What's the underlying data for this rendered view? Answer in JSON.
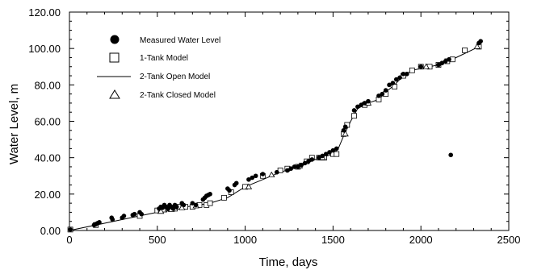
{
  "chart_data": {
    "type": "scatter",
    "xlabel": "Time, days",
    "ylabel": "Water Level, m",
    "xlim": [
      0,
      2500
    ],
    "ylim": [
      0,
      120
    ],
    "xticks": [
      "0",
      "500",
      "1000",
      "1500",
      "2000",
      "2500"
    ],
    "yticks": [
      "0.00",
      "20.00",
      "40.00",
      "60.00",
      "80.00",
      "100.00",
      "120.00"
    ],
    "grid": false,
    "legend_placement": "top-left",
    "series": [
      {
        "name": "Measured Water Level",
        "marker": "filled-circle",
        "points": [
          [
            5,
            0.5
          ],
          [
            140,
            3
          ],
          [
            150,
            3.5
          ],
          [
            160,
            4
          ],
          [
            170,
            4.5
          ],
          [
            240,
            7
          ],
          [
            245,
            6
          ],
          [
            300,
            7
          ],
          [
            310,
            8
          ],
          [
            360,
            8.5
          ],
          [
            370,
            9
          ],
          [
            400,
            10
          ],
          [
            410,
            9
          ],
          [
            510,
            12
          ],
          [
            520,
            13
          ],
          [
            530,
            12.5
          ],
          [
            540,
            14
          ],
          [
            550,
            13
          ],
          [
            560,
            12
          ],
          [
            570,
            14
          ],
          [
            580,
            13
          ],
          [
            590,
            12
          ],
          [
            600,
            14
          ],
          [
            610,
            13
          ],
          [
            640,
            15
          ],
          [
            650,
            14
          ],
          [
            700,
            15
          ],
          [
            720,
            14
          ],
          [
            760,
            17
          ],
          [
            770,
            18
          ],
          [
            780,
            19
          ],
          [
            790,
            19.5
          ],
          [
            800,
            20
          ],
          [
            900,
            23
          ],
          [
            910,
            22
          ],
          [
            940,
            25
          ],
          [
            950,
            26
          ],
          [
            1020,
            28
          ],
          [
            1040,
            29
          ],
          [
            1060,
            30
          ],
          [
            1100,
            31
          ],
          [
            1180,
            32
          ],
          [
            1240,
            33
          ],
          [
            1260,
            34
          ],
          [
            1280,
            35
          ],
          [
            1300,
            35
          ],
          [
            1320,
            36
          ],
          [
            1340,
            37
          ],
          [
            1360,
            38
          ],
          [
            1380,
            39
          ],
          [
            1420,
            40
          ],
          [
            1440,
            41
          ],
          [
            1460,
            42
          ],
          [
            1480,
            43
          ],
          [
            1500,
            44
          ],
          [
            1520,
            45
          ],
          [
            1560,
            55
          ],
          [
            1570,
            57
          ],
          [
            1620,
            66
          ],
          [
            1640,
            68
          ],
          [
            1660,
            69
          ],
          [
            1680,
            70
          ],
          [
            1700,
            71
          ],
          [
            1760,
            74
          ],
          [
            1780,
            75
          ],
          [
            1800,
            77
          ],
          [
            1820,
            80
          ],
          [
            1840,
            81
          ],
          [
            1860,
            83
          ],
          [
            1880,
            84
          ],
          [
            1900,
            86
          ],
          [
            1920,
            86
          ],
          [
            2000,
            90
          ],
          [
            2100,
            91
          ],
          [
            2120,
            92
          ],
          [
            2140,
            93
          ],
          [
            2160,
            94
          ],
          [
            2170,
            41.5
          ],
          [
            2330,
            103
          ],
          [
            2340,
            104
          ]
        ]
      },
      {
        "name": "1-Tank Model",
        "marker": "open-square",
        "points": [
          [
            5,
            0.5
          ],
          [
            150,
            3
          ],
          [
            400,
            8
          ],
          [
            500,
            11
          ],
          [
            520,
            11
          ],
          [
            540,
            11.5
          ],
          [
            560,
            12
          ],
          [
            600,
            12
          ],
          [
            620,
            13
          ],
          [
            660,
            13
          ],
          [
            700,
            13
          ],
          [
            740,
            14
          ],
          [
            780,
            14
          ],
          [
            800,
            15
          ],
          [
            880,
            18
          ],
          [
            920,
            21
          ],
          [
            1000,
            24
          ],
          [
            1100,
            30
          ],
          [
            1200,
            33
          ],
          [
            1240,
            34
          ],
          [
            1300,
            35
          ],
          [
            1350,
            38
          ],
          [
            1380,
            40
          ],
          [
            1420,
            40
          ],
          [
            1450,
            40
          ],
          [
            1500,
            42
          ],
          [
            1520,
            42
          ],
          [
            1560,
            53
          ],
          [
            1580,
            58
          ],
          [
            1620,
            63
          ],
          [
            1680,
            69
          ],
          [
            1760,
            72
          ],
          [
            1800,
            75
          ],
          [
            1850,
            79
          ],
          [
            1900,
            85
          ],
          [
            1950,
            88
          ],
          [
            2000,
            90
          ],
          [
            2050,
            90
          ],
          [
            2100,
            91
          ],
          [
            2150,
            93
          ],
          [
            2180,
            94
          ],
          [
            2250,
            99
          ],
          [
            2330,
            101
          ]
        ]
      },
      {
        "name": "2-Tank Open Model",
        "marker": "line",
        "points": [
          [
            0,
            0
          ],
          [
            200,
            4
          ],
          [
            400,
            8
          ],
          [
            600,
            12
          ],
          [
            800,
            15
          ],
          [
            900,
            18
          ],
          [
            1000,
            24
          ],
          [
            1100,
            28
          ],
          [
            1200,
            32
          ],
          [
            1300,
            35
          ],
          [
            1400,
            39
          ],
          [
            1500,
            42
          ],
          [
            1530,
            45
          ],
          [
            1560,
            52
          ],
          [
            1600,
            60
          ],
          [
            1640,
            67
          ],
          [
            1700,
            70
          ],
          [
            1760,
            72
          ],
          [
            1800,
            76
          ],
          [
            1850,
            80
          ],
          [
            1900,
            85
          ],
          [
            1950,
            88
          ],
          [
            2000,
            89
          ],
          [
            2100,
            91
          ],
          [
            2200,
            95
          ],
          [
            2330,
            101
          ]
        ]
      },
      {
        "name": "2-Tank Closed Model",
        "marker": "open-triangle",
        "points": [
          [
            520,
            10.5
          ],
          [
            580,
            11.5
          ],
          [
            640,
            12.5
          ],
          [
            720,
            13.5
          ],
          [
            1020,
            24
          ],
          [
            1150,
            30.5
          ],
          [
            1310,
            35.5
          ],
          [
            1440,
            40
          ],
          [
            1570,
            53
          ],
          [
            1700,
            70
          ],
          [
            2030,
            90
          ],
          [
            2320,
            101
          ]
        ]
      }
    ]
  }
}
